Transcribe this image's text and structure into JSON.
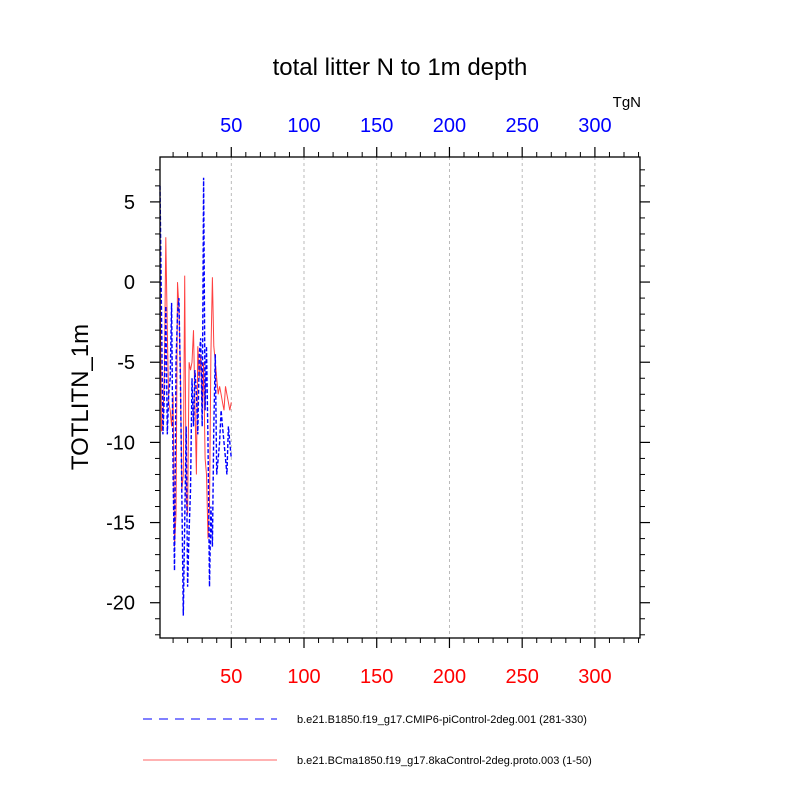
{
  "chart_data": {
    "type": "line",
    "title": "total litter N to 1m depth",
    "ylabel": "TOTLITN_1m",
    "units": "TgN",
    "xlim": [
      1,
      331
    ],
    "ylim": [
      -22.2,
      7.8
    ],
    "x_ticks": [
      50,
      100,
      150,
      200,
      250,
      300
    ],
    "x_tick_labels": [
      "50",
      "100",
      "150",
      "200",
      "250",
      "300"
    ],
    "y_ticks": [
      5,
      0,
      -5,
      -10,
      -15,
      -20
    ],
    "y_tick_labels": [
      "5",
      "0",
      "-5",
      "-10",
      "-15",
      "-20"
    ],
    "bottom_axis_color": "#ff0000",
    "top_axis_color": "#0000ff",
    "vertical_grid": true,
    "legend_position": "bottom",
    "series": [
      {
        "name": "b.e21.B1850.f19_g17.CMIP6-piControl-2deg.001 (281-330)",
        "color": "#0000ff",
        "style": "dashed",
        "x": [
          1,
          2,
          3,
          4,
          5,
          6,
          7,
          8,
          9,
          10,
          11,
          12,
          13,
          14,
          15,
          16,
          17,
          18,
          19,
          20,
          21,
          22,
          23,
          24,
          25,
          26,
          27,
          28,
          29,
          30,
          31,
          32,
          33,
          34,
          35,
          36,
          37,
          38,
          39,
          40,
          41,
          42,
          43,
          44,
          45,
          46,
          47,
          48,
          49,
          50
        ],
        "values": [
          6.0,
          -2.0,
          -9.5,
          -7.0,
          -1.5,
          -9.5,
          -7.0,
          -6.0,
          -1.3,
          -12.0,
          -18.0,
          -5.0,
          -2.0,
          -1.0,
          -6.0,
          -13.0,
          -20.8,
          -15.0,
          -9.0,
          -19.0,
          -15.5,
          -13.0,
          -6.0,
          -9.0,
          -5.5,
          -7.0,
          -9.5,
          -4.5,
          -3.5,
          -9.0,
          6.5,
          -8.0,
          -4.0,
          -10.0,
          -19.0,
          -14.0,
          -16.5,
          -9.0,
          -4.5,
          -12.0,
          -11.0,
          -10.0,
          -8.0,
          -9.0,
          -10.0,
          -11.0,
          -12.0,
          -9.0,
          -10.0,
          -11.0
        ]
      },
      {
        "name": "b.e21.BCma1850.f19_g17.8kaControl-2deg.proto.003 (1-50)",
        "color": "#ff0000",
        "style": "solid",
        "x": [
          1,
          2,
          3,
          4,
          5,
          6,
          7,
          8,
          9,
          10,
          11,
          12,
          13,
          14,
          15,
          16,
          17,
          18,
          19,
          20,
          21,
          22,
          23,
          24,
          25,
          26,
          27,
          28,
          29,
          30,
          31,
          32,
          33,
          34,
          35,
          36,
          37,
          38,
          39,
          40,
          41,
          42,
          43,
          44,
          45,
          46,
          47,
          48,
          49,
          50
        ],
        "values": [
          0.5,
          -9.3,
          -9.0,
          -5.5,
          2.8,
          -3.0,
          -7.5,
          -8.0,
          -9.0,
          -7.0,
          -16.5,
          -14.5,
          0.0,
          -1.5,
          -5.5,
          -13.0,
          -12.0,
          0.4,
          -13.5,
          -14.5,
          -5.0,
          -5.5,
          -5.0,
          -3.0,
          -7.5,
          -12.0,
          -4.0,
          -6.0,
          -4.5,
          -8.0,
          -5.0,
          -11.0,
          -12.0,
          -16.0,
          -14.0,
          -4.5,
          0.3,
          -4.0,
          -5.0,
          -6.0,
          -7.0,
          -6.5,
          -7.0,
          -7.5,
          -8.0,
          -6.5,
          -7.0,
          -7.5,
          -8.0,
          -7.5
        ]
      }
    ]
  }
}
